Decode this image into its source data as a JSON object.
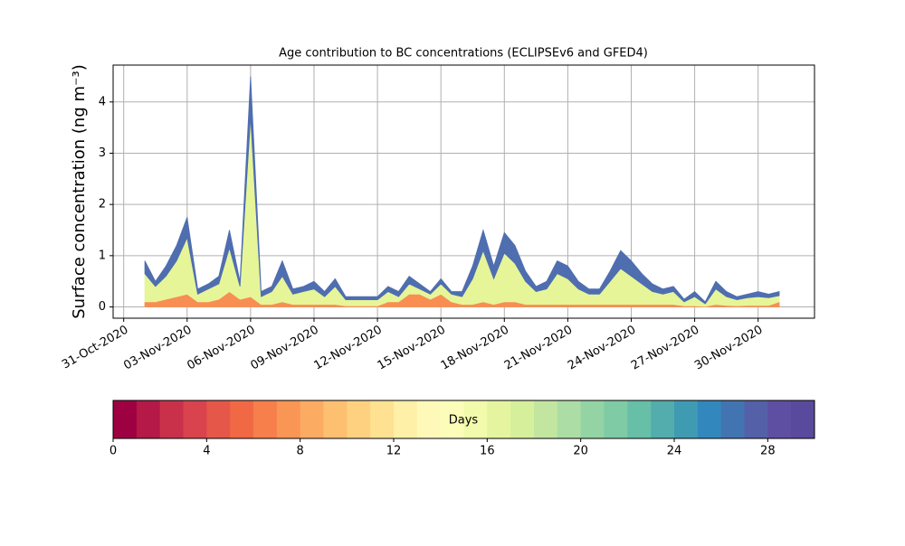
{
  "chart_data": {
    "type": "stackplot",
    "title": "Age contribution to BC concentrations (ECLIPSEv6 and GFED4)",
    "y_label": "Surface concentration (ng m⁻³)",
    "grid": true,
    "xlim": [
      "2020-10-30 12:00",
      "2020-12-02 16:00"
    ],
    "ylim": [
      -0.22,
      4.72
    ],
    "yticks": [
      0,
      1,
      2,
      3,
      4
    ],
    "xticks": [
      {
        "value": "2020-10-31 00:00",
        "label": "31-Oct-2020"
      },
      {
        "value": "2020-11-03 00:00",
        "label": "03-Nov-2020"
      },
      {
        "value": "2020-11-06 00:00",
        "label": "06-Nov-2020"
      },
      {
        "value": "2020-11-09 00:00",
        "label": "09-Nov-2020"
      },
      {
        "value": "2020-11-12 00:00",
        "label": "12-Nov-2020"
      },
      {
        "value": "2020-11-15 00:00",
        "label": "15-Nov-2020"
      },
      {
        "value": "2020-11-18 00:00",
        "label": "18-Nov-2020"
      },
      {
        "value": "2020-11-21 00:00",
        "label": "21-Nov-2020"
      },
      {
        "value": "2020-11-24 00:00",
        "label": "24-Nov-2020"
      },
      {
        "value": "2020-11-27 00:00",
        "label": "27-Nov-2020"
      },
      {
        "value": "2020-11-30 00:00",
        "label": "30-Nov-2020"
      }
    ],
    "x": [
      "2020-11-01 00:00",
      "2020-11-01 12:00",
      "2020-11-02 00:00",
      "2020-11-02 12:00",
      "2020-11-03 00:00",
      "2020-11-03 12:00",
      "2020-11-04 00:00",
      "2020-11-04 12:00",
      "2020-11-05 00:00",
      "2020-11-05 12:00",
      "2020-11-06 00:00",
      "2020-11-06 12:00",
      "2020-11-07 00:00",
      "2020-11-07 12:00",
      "2020-11-08 00:00",
      "2020-11-08 12:00",
      "2020-11-09 00:00",
      "2020-11-09 12:00",
      "2020-11-10 00:00",
      "2020-11-10 12:00",
      "2020-11-11 00:00",
      "2020-11-11 12:00",
      "2020-11-12 00:00",
      "2020-11-12 12:00",
      "2020-11-13 00:00",
      "2020-11-13 12:00",
      "2020-11-14 00:00",
      "2020-11-14 12:00",
      "2020-11-15 00:00",
      "2020-11-15 12:00",
      "2020-11-16 00:00",
      "2020-11-16 12:00",
      "2020-11-17 00:00",
      "2020-11-17 12:00",
      "2020-11-18 00:00",
      "2020-11-18 12:00",
      "2020-11-19 00:00",
      "2020-11-19 12:00",
      "2020-11-20 00:00",
      "2020-11-20 12:00",
      "2020-11-21 00:00",
      "2020-11-21 12:00",
      "2020-11-22 00:00",
      "2020-11-22 12:00",
      "2020-11-23 00:00",
      "2020-11-23 12:00",
      "2020-11-24 00:00",
      "2020-11-24 12:00",
      "2020-11-25 00:00",
      "2020-11-25 12:00",
      "2020-11-26 00:00",
      "2020-11-26 12:00",
      "2020-11-27 00:00",
      "2020-11-27 12:00",
      "2020-11-28 00:00",
      "2020-11-28 12:00",
      "2020-11-29 00:00",
      "2020-11-29 12:00",
      "2020-11-30 00:00",
      "2020-11-30 12:00",
      "2020-12-01 00:00"
    ],
    "series": [
      {
        "color": "#f88e52",
        "values": [
          0.1,
          0.1,
          0.15,
          0.2,
          0.25,
          0.1,
          0.1,
          0.15,
          0.3,
          0.15,
          0.2,
          0.05,
          0.05,
          0.1,
          0.05,
          0.05,
          0.05,
          0.05,
          0.05,
          0.02,
          0.02,
          0.02,
          0.02,
          0.1,
          0.1,
          0.25,
          0.25,
          0.15,
          0.25,
          0.1,
          0.05,
          0.05,
          0.1,
          0.05,
          0.1,
          0.1,
          0.05,
          0.05,
          0.05,
          0.05,
          0.05,
          0.05,
          0.05,
          0.05,
          0.05,
          0.05,
          0.05,
          0.05,
          0.05,
          0.05,
          0.05,
          0.02,
          0.02,
          0.01,
          0.05,
          0.03,
          0.02,
          0.03,
          0.03,
          0.03,
          0.1
        ]
      },
      {
        "color": "#e6f598",
        "values": [
          0.55,
          0.3,
          0.45,
          0.7,
          1.1,
          0.15,
          0.25,
          0.3,
          0.85,
          0.25,
          3.5,
          0.15,
          0.25,
          0.5,
          0.2,
          0.25,
          0.3,
          0.15,
          0.35,
          0.12,
          0.12,
          0.12,
          0.12,
          0.2,
          0.1,
          0.2,
          0.1,
          0.1,
          0.2,
          0.15,
          0.15,
          0.5,
          1.0,
          0.5,
          0.95,
          0.75,
          0.45,
          0.25,
          0.3,
          0.6,
          0.5,
          0.3,
          0.2,
          0.2,
          0.45,
          0.7,
          0.55,
          0.4,
          0.25,
          0.2,
          0.25,
          0.08,
          0.18,
          0.05,
          0.3,
          0.17,
          0.12,
          0.15,
          0.17,
          0.15,
          0.12
        ]
      },
      {
        "color": "#4f6eb0",
        "values": [
          0.25,
          0.1,
          0.2,
          0.3,
          0.4,
          0.1,
          0.1,
          0.15,
          0.35,
          0.1,
          0.8,
          0.1,
          0.1,
          0.3,
          0.1,
          0.1,
          0.15,
          0.1,
          0.15,
          0.06,
          0.06,
          0.06,
          0.06,
          0.1,
          0.1,
          0.15,
          0.1,
          0.05,
          0.1,
          0.05,
          0.1,
          0.25,
          0.4,
          0.25,
          0.4,
          0.35,
          0.2,
          0.1,
          0.15,
          0.25,
          0.25,
          0.15,
          0.1,
          0.1,
          0.2,
          0.35,
          0.3,
          0.2,
          0.15,
          0.1,
          0.1,
          0.05,
          0.1,
          0.04,
          0.15,
          0.1,
          0.06,
          0.07,
          0.1,
          0.07,
          0.08
        ]
      }
    ],
    "colorbar": {
      "label": "Days",
      "lim": [
        0,
        30
      ],
      "ticks": [
        0,
        4,
        8,
        12,
        16,
        20,
        24,
        28
      ],
      "colors": [
        "#9e0142",
        "#b41947",
        "#c9314b",
        "#d8434e",
        "#e55749",
        "#f06944",
        "#f67f4b",
        "#f99555",
        "#fcab62",
        "#fdbf70",
        "#fed181",
        "#fee291",
        "#fef0a6",
        "#fff9b9",
        "#fbfdb9",
        "#f2faab",
        "#e5f59f",
        "#d6ef9b",
        "#c2e6a0",
        "#abdda4",
        "#94d3a4",
        "#7ecba5",
        "#67bfa8",
        "#52adac",
        "#3f9bb2",
        "#3288bd",
        "#4274b2",
        "#5461a8",
        "#5e4fa2",
        "#5a4a9e"
      ]
    }
  }
}
